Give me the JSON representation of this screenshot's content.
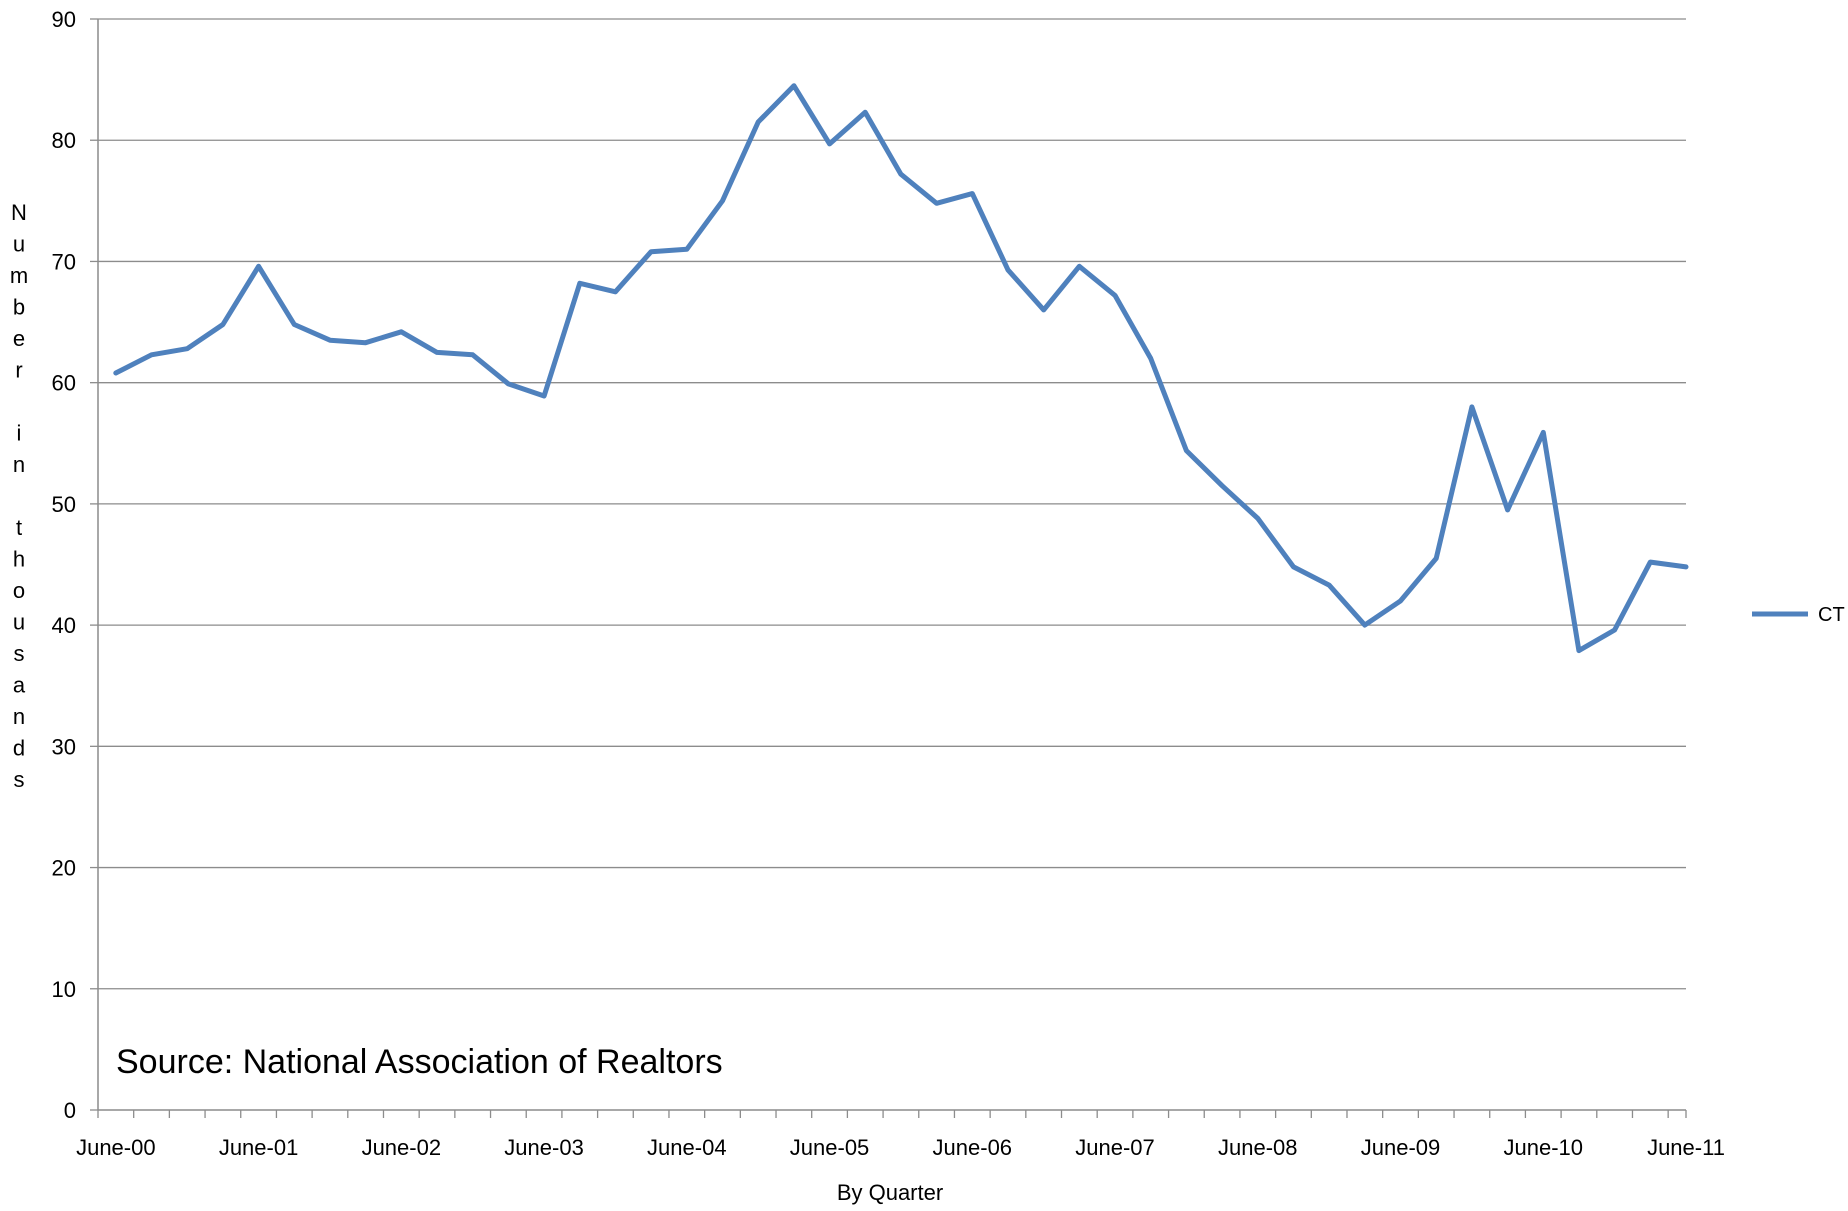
{
  "chart_data": {
    "type": "line",
    "xlabel": "By Quarter",
    "ylabel": "Number in thousands",
    "annotation": "Source: National Association of Realtors",
    "ylim": [
      0,
      90
    ],
    "yticks": [
      0,
      10,
      20,
      30,
      40,
      50,
      60,
      70,
      80,
      90
    ],
    "grid": true,
    "legend_position": "right",
    "x_tick_labels": [
      "June-00",
      "June-01",
      "June-02",
      "June-03",
      "June-04",
      "June-05",
      "June-06",
      "June-07",
      "June-08",
      "June-09",
      "June-10",
      "June-11"
    ],
    "x_tick_positions": [
      0,
      4,
      8,
      12,
      16,
      20,
      24,
      28,
      32,
      36,
      40,
      44
    ],
    "series": [
      {
        "name": "CT",
        "color": "#4f81bd",
        "values": [
          60.8,
          62.3,
          62.8,
          64.8,
          69.6,
          64.8,
          63.5,
          63.3,
          64.2,
          62.5,
          62.3,
          59.9,
          58.9,
          68.2,
          67.5,
          70.8,
          71.0,
          75.0,
          81.5,
          84.5,
          79.7,
          82.3,
          77.2,
          74.8,
          75.6,
          69.3,
          66.0,
          69.6,
          67.2,
          62.0,
          54.4,
          51.5,
          48.8,
          44.8,
          43.3,
          40.0,
          42.0,
          45.5,
          58.0,
          49.5,
          55.9,
          37.9,
          39.6,
          45.2,
          44.8
        ]
      }
    ]
  }
}
